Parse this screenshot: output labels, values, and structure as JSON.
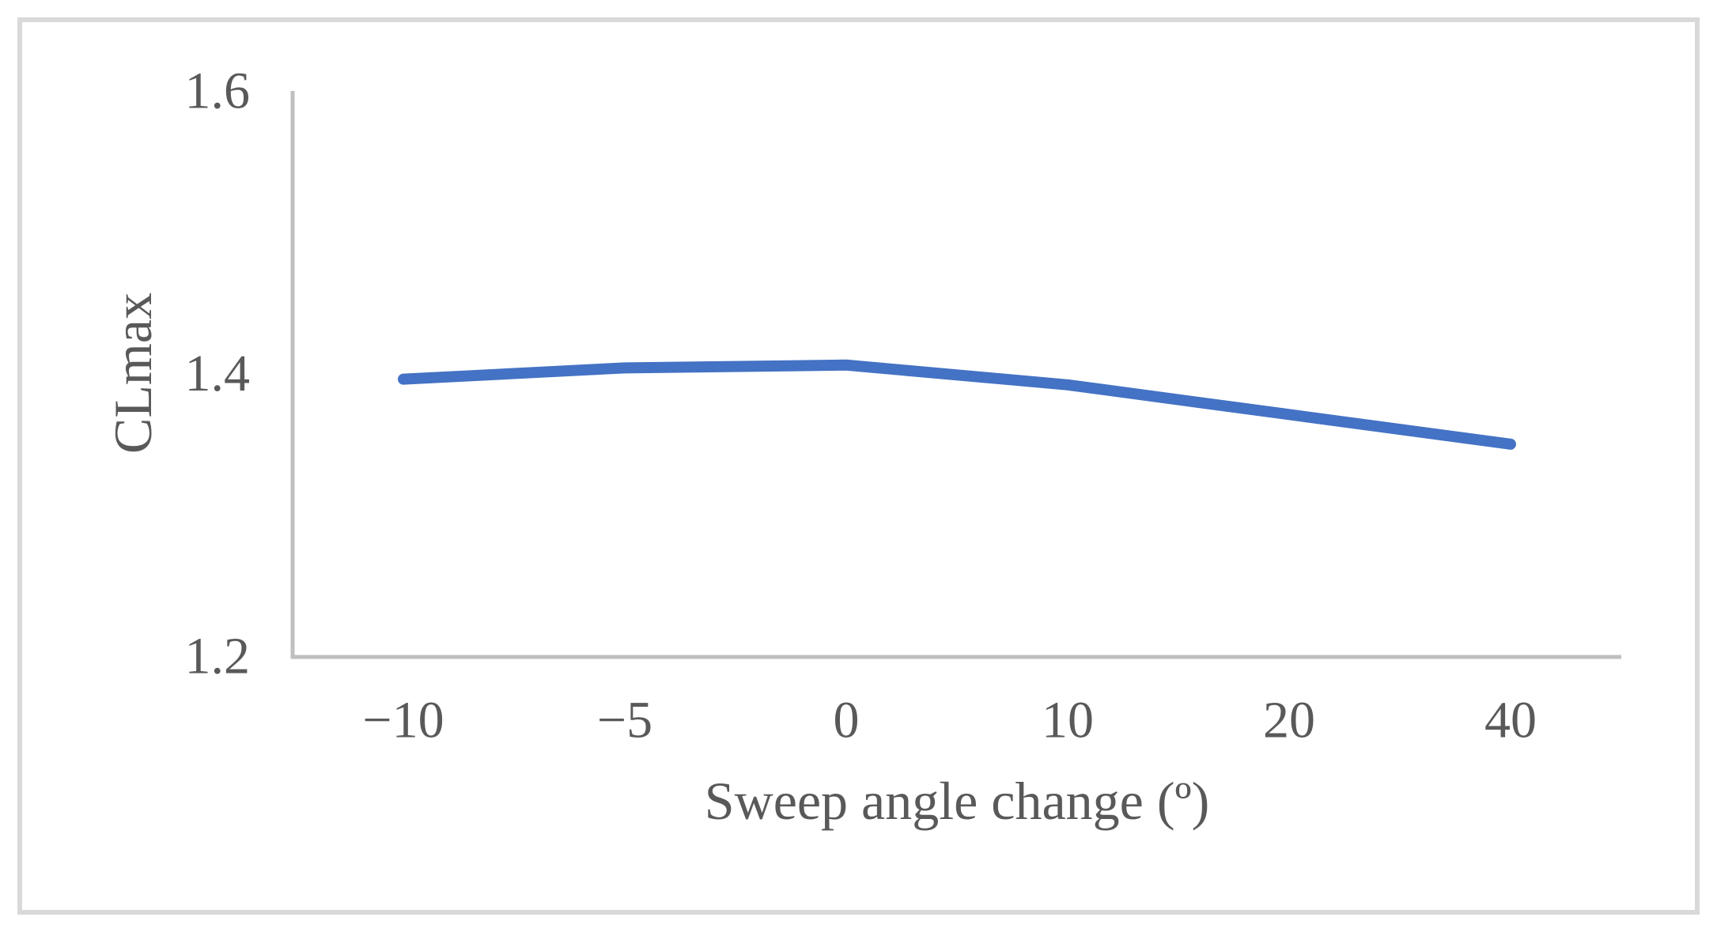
{
  "chart_data": {
    "type": "line",
    "categories": [
      "−10",
      "−5",
      "0",
      "10",
      "20",
      "40"
    ],
    "x_values": [
      -10,
      -5,
      0,
      10,
      20,
      40
    ],
    "series": [
      {
        "name": "CLmax",
        "values": [
          1.396,
          1.404,
          1.406,
          1.392,
          1.371,
          1.35
        ],
        "color": "#4472C4"
      }
    ],
    "title": "",
    "xlabel": "Sweep angle change (º)",
    "ylabel": "CLmax",
    "ylim": [
      1.2,
      1.6
    ],
    "y_ticks": [
      1.2,
      1.4,
      1.6
    ],
    "y_tick_labels": [
      "1.2",
      "1.4",
      "1.6"
    ],
    "grid": false,
    "legend": false,
    "axis_mode": "category"
  },
  "colors": {
    "line": "#4472C4",
    "axis_line": "#BFBFBF",
    "text": "#595959",
    "frame_border": "#D9D9D9",
    "background": "#FFFFFF"
  }
}
